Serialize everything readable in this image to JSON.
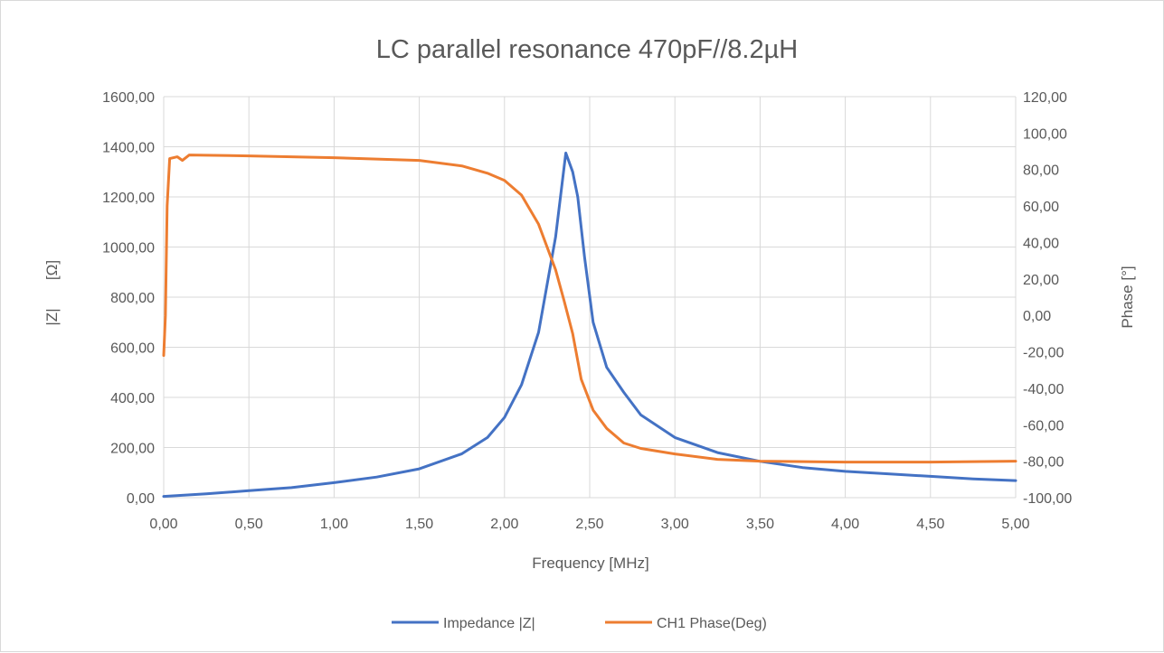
{
  "chart_data": {
    "type": "line",
    "title": "LC parallel resonance 470pF//8.2µH",
    "xlabel": "Frequency [MHz]",
    "ylabel": "|Z| [Ω]",
    "ylabel_parts": [
      "|Z|",
      "[Ω]"
    ],
    "y2label": "Phase [°]",
    "xlim": [
      0,
      5
    ],
    "ylim": [
      0,
      1600
    ],
    "y2lim": [
      -100,
      120
    ],
    "x_ticks": [
      0,
      0.5,
      1,
      1.5,
      2,
      2.5,
      3,
      3.5,
      4,
      4.5,
      5
    ],
    "y_ticks": [
      0,
      200,
      400,
      600,
      800,
      1000,
      1200,
      1400,
      1600
    ],
    "y2_ticks": [
      -100,
      -80,
      -60,
      -40,
      -20,
      0,
      20,
      40,
      60,
      80,
      100,
      120
    ],
    "x_tick_labels": [
      "0,00",
      "0,50",
      "1,00",
      "1,50",
      "2,00",
      "2,50",
      "3,00",
      "3,50",
      "4,00",
      "4,50",
      "5,00"
    ],
    "y_tick_labels": [
      "0,00",
      "200,00",
      "400,00",
      "600,00",
      "800,00",
      "1000,00",
      "1200,00",
      "1400,00",
      "1600,00"
    ],
    "y2_tick_labels": [
      "-100,00",
      "-80,00",
      "-60,00",
      "-40,00",
      "-20,00",
      "0,00",
      "20,00",
      "40,00",
      "60,00",
      "80,00",
      "100,00",
      "120,00"
    ],
    "grid": true,
    "legend_position": "bottom",
    "series": [
      {
        "name": "Impedance |Z|",
        "axis": "left",
        "color": "#4472c4",
        "points": [
          [
            0,
            5
          ],
          [
            0.25,
            15
          ],
          [
            0.5,
            28
          ],
          [
            0.75,
            40
          ],
          [
            1.0,
            60
          ],
          [
            1.25,
            82
          ],
          [
            1.5,
            115
          ],
          [
            1.75,
            175
          ],
          [
            1.9,
            240
          ],
          [
            2.0,
            320
          ],
          [
            2.1,
            450
          ],
          [
            2.2,
            660
          ],
          [
            2.3,
            1040
          ],
          [
            2.36,
            1375
          ],
          [
            2.4,
            1300
          ],
          [
            2.43,
            1200
          ],
          [
            2.47,
            960
          ],
          [
            2.52,
            700
          ],
          [
            2.6,
            520
          ],
          [
            2.7,
            420
          ],
          [
            2.8,
            330
          ],
          [
            3.0,
            240
          ],
          [
            3.25,
            180
          ],
          [
            3.5,
            145
          ],
          [
            3.75,
            120
          ],
          [
            4.0,
            105
          ],
          [
            4.25,
            95
          ],
          [
            4.5,
            85
          ],
          [
            4.75,
            75
          ],
          [
            5.0,
            68
          ]
        ]
      },
      {
        "name": "CH1 Phase(Deg)",
        "axis": "right",
        "color": "#ed7d31",
        "points": [
          [
            0,
            -22
          ],
          [
            0.01,
            0
          ],
          [
            0.02,
            60
          ],
          [
            0.035,
            86
          ],
          [
            0.08,
            87
          ],
          [
            0.11,
            85
          ],
          [
            0.15,
            88
          ],
          [
            0.5,
            87.5
          ],
          [
            1.0,
            86.5
          ],
          [
            1.5,
            85
          ],
          [
            1.75,
            82
          ],
          [
            1.9,
            78
          ],
          [
            2.0,
            74
          ],
          [
            2.1,
            66
          ],
          [
            2.2,
            50
          ],
          [
            2.3,
            25
          ],
          [
            2.35,
            8
          ],
          [
            2.4,
            -10
          ],
          [
            2.45,
            -35
          ],
          [
            2.52,
            -52
          ],
          [
            2.6,
            -62
          ],
          [
            2.7,
            -70
          ],
          [
            2.8,
            -73
          ],
          [
            3.0,
            -76
          ],
          [
            3.25,
            -79
          ],
          [
            3.5,
            -80
          ],
          [
            4.0,
            -80.5
          ],
          [
            4.5,
            -80.5
          ],
          [
            5.0,
            -80
          ]
        ]
      }
    ]
  }
}
